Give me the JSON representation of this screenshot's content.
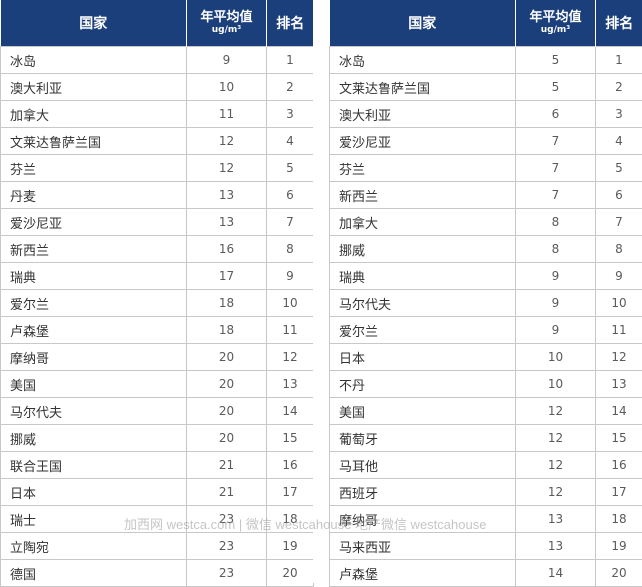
{
  "left_table": {
    "header": {
      "country": "国家",
      "value_line1": "年平均值",
      "value_line2": "ug/m³",
      "rank": "排名"
    },
    "rows": [
      {
        "country": "冰岛",
        "value": "9",
        "rank": "1"
      },
      {
        "country": "澳大利亚",
        "value": "10",
        "rank": "2"
      },
      {
        "country": "加拿大",
        "value": "11",
        "rank": "3"
      },
      {
        "country": "文莱达鲁萨兰国",
        "value": "12",
        "rank": "4"
      },
      {
        "country": "芬兰",
        "value": "12",
        "rank": "5"
      },
      {
        "country": "丹麦",
        "value": "13",
        "rank": "6"
      },
      {
        "country": "爱沙尼亚",
        "value": "13",
        "rank": "7"
      },
      {
        "country": "新西兰",
        "value": "16",
        "rank": "8"
      },
      {
        "country": "瑞典",
        "value": "17",
        "rank": "9"
      },
      {
        "country": "爱尔兰",
        "value": "18",
        "rank": "10"
      },
      {
        "country": "卢森堡",
        "value": "18",
        "rank": "11"
      },
      {
        "country": "摩纳哥",
        "value": "20",
        "rank": "12"
      },
      {
        "country": "美国",
        "value": "20",
        "rank": "13"
      },
      {
        "country": "马尔代夫",
        "value": "20",
        "rank": "14"
      },
      {
        "country": "挪威",
        "value": "20",
        "rank": "15"
      },
      {
        "country": "联合王国",
        "value": "21",
        "rank": "16"
      },
      {
        "country": "日本",
        "value": "21",
        "rank": "17"
      },
      {
        "country": "瑞士",
        "value": "23",
        "rank": "18"
      },
      {
        "country": "立陶宛",
        "value": "23",
        "rank": "19"
      },
      {
        "country": "德国",
        "value": "23",
        "rank": "20"
      }
    ]
  },
  "right_table": {
    "header": {
      "country": "国家",
      "value_line1": "年平均值",
      "value_line2": "ug/m³",
      "rank": "排名"
    },
    "rows": [
      {
        "country": "冰岛",
        "value": "5",
        "rank": "1"
      },
      {
        "country": "文莱达鲁萨兰国",
        "value": "5",
        "rank": "2"
      },
      {
        "country": "澳大利亚",
        "value": "6",
        "rank": "3"
      },
      {
        "country": "爱沙尼亚",
        "value": "7",
        "rank": "4"
      },
      {
        "country": "芬兰",
        "value": "7",
        "rank": "5"
      },
      {
        "country": "新西兰",
        "value": "7",
        "rank": "6"
      },
      {
        "country": "加拿大",
        "value": "8",
        "rank": "7"
      },
      {
        "country": "挪威",
        "value": "8",
        "rank": "8"
      },
      {
        "country": "瑞典",
        "value": "9",
        "rank": "9"
      },
      {
        "country": "马尔代夫",
        "value": "9",
        "rank": "10"
      },
      {
        "country": "爱尔兰",
        "value": "9",
        "rank": "11"
      },
      {
        "country": "日本",
        "value": "10",
        "rank": "12"
      },
      {
        "country": "不丹",
        "value": "10",
        "rank": "13"
      },
      {
        "country": "美国",
        "value": "12",
        "rank": "14"
      },
      {
        "country": "葡萄牙",
        "value": "12",
        "rank": "15"
      },
      {
        "country": "马耳他",
        "value": "12",
        "rank": "16"
      },
      {
        "country": "西班牙",
        "value": "12",
        "rank": "17"
      },
      {
        "country": "摩纳哥",
        "value": "13",
        "rank": "18"
      },
      {
        "country": "马来西亚",
        "value": "13",
        "rank": "19"
      },
      {
        "country": "卢森堡",
        "value": "14",
        "rank": "20"
      }
    ]
  },
  "watermark": "加西网 westca.com | 微信 westcahouse 地产微信 westcahouse"
}
